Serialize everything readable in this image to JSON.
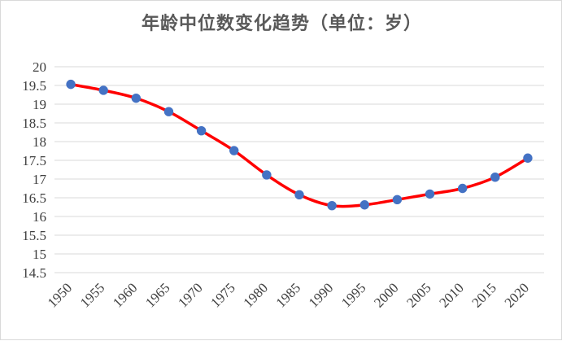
{
  "chart_data": {
    "type": "line",
    "title": "年龄中位数变化趋势（单位：岁）",
    "x": [
      "1950",
      "1955",
      "1960",
      "1965",
      "1970",
      "1975",
      "1980",
      "1985",
      "1990",
      "1995",
      "2000",
      "2005",
      "2010",
      "2015",
      "2020"
    ],
    "series": [
      {
        "values": [
          19.53,
          19.37,
          19.16,
          18.8,
          18.29,
          17.76,
          17.11,
          16.58,
          16.29,
          16.31,
          16.45,
          16.6,
          16.75,
          17.05,
          17.56
        ]
      }
    ],
    "yticks": [
      "14.5",
      "15",
      "15.5",
      "16",
      "16.5",
      "17",
      "17.5",
      "18",
      "18.5",
      "19",
      "19.5",
      "20"
    ],
    "ylim": [
      14.5,
      20
    ],
    "grid": true,
    "colors": {
      "line": "#ff0000",
      "marker": "#4472c4",
      "grid": "#d9d9d9"
    }
  }
}
